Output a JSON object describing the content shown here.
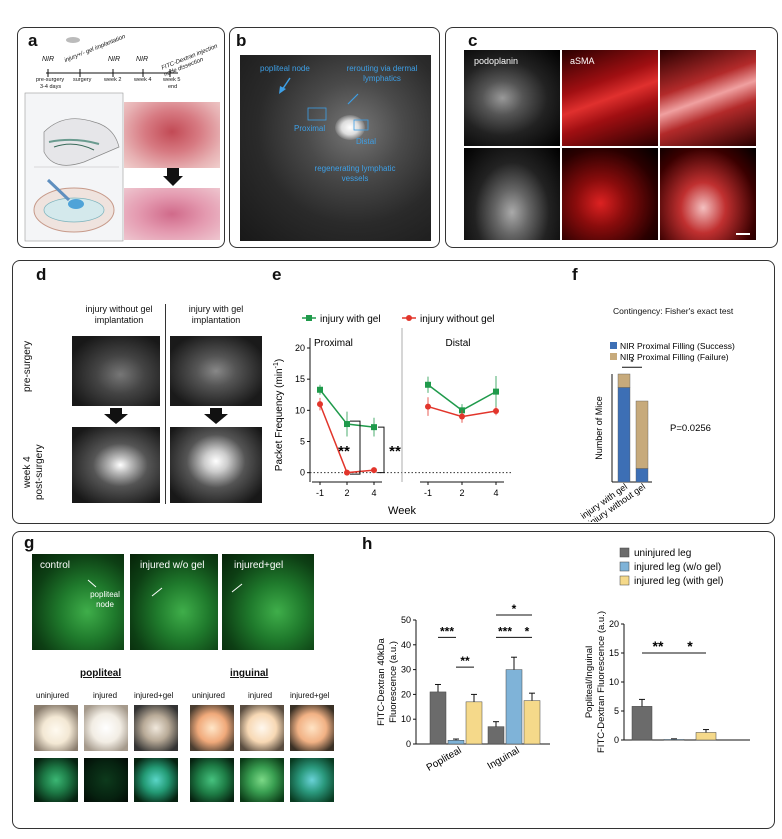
{
  "panel_a": {
    "label": "a",
    "timeline_top": [
      "NIR",
      "injury+/- gel implantation",
      "NIR",
      "NIR",
      "FITC-Dextran injection node dissection"
    ],
    "timeline_bottom": [
      "pre-surgery",
      "3-4 days",
      "surgery",
      "week 2",
      "week 4",
      "week 5",
      "end"
    ]
  },
  "panel_b": {
    "label": "b",
    "annotations": [
      "popliteal node",
      "rerouting via dermal lymphatics",
      "Proximal",
      "Distal",
      "regenerating lymphatic vessels"
    ]
  },
  "panel_c": {
    "label": "c",
    "channels": [
      "podoplanin",
      "aSMA"
    ]
  },
  "panel_d": {
    "label": "d",
    "col1": "injury without gel implantation",
    "col2": "injury with gel implantation",
    "row1": "pre-surgery",
    "row2a": "week 4",
    "row2b": "post-surgery"
  },
  "panel_e": {
    "label": "e",
    "legend": [
      "injury with gel",
      "injury without  gel"
    ],
    "subtitles": [
      "Proximal",
      "Distal"
    ],
    "ylabel": "Packet Frequency (min",
    "ylabel_sup": "-1",
    "xlabel": "Week",
    "sig": [
      "**",
      "**"
    ],
    "colors": {
      "with_gel": "#1f9a4b",
      "without_gel": "#e2352b"
    }
  },
  "panel_f": {
    "label": "f",
    "title": "Contingency: Fisher's exact test",
    "legend": [
      "NIR Proximal Filling (Success)",
      "NIR Proximal Filling (Failure)"
    ],
    "ylabel": "Number of Mice",
    "pvalue": "P=0.0256",
    "sig": "*",
    "colors": {
      "success": "#3d6fb5",
      "failure": "#c7aa7b"
    }
  },
  "panel_g": {
    "label": "g",
    "images": [
      "control",
      "injured w/o gel",
      "injured+gel"
    ],
    "node_label": "popliteal node",
    "groups": [
      "popliteal",
      "inguinal"
    ],
    "conditions": [
      "uninjured",
      "injured",
      "injured+gel",
      "uninjured",
      "injured",
      "injured+gel"
    ]
  },
  "panel_h": {
    "label": "h",
    "legend": [
      "uninjured leg",
      "injured leg (w/o gel)",
      "injured leg (with gel)"
    ],
    "left_ylabel_1": "FITC-Dextran 40kDa",
    "left_ylabel_2": "Fluorescence (a.u.)",
    "right_ylabel_1": "Popliteal/Inguinal",
    "right_ylabel_2": "FITC-Dextran Fluorescence (a.u.)",
    "left_categories": [
      "Popliteal",
      "Inguinal"
    ],
    "sig_left": [
      "***",
      "**",
      "***",
      "*",
      "*"
    ],
    "sig_right": [
      "**",
      "*"
    ],
    "colors": {
      "uninjured": "#6b6b6b",
      "without_gel": "#7fb3d8",
      "with_gel": "#f5d98a"
    }
  },
  "chart_data": [
    {
      "type": "line",
      "panel": "e-proximal",
      "subtitle": "Proximal",
      "x": [
        -1,
        2,
        4
      ],
      "series": [
        {
          "name": "injury with gel",
          "values": [
            13.3,
            7.8,
            7.3
          ],
          "errors": [
            0.8,
            2.0,
            1.5
          ]
        },
        {
          "name": "injury without  gel",
          "values": [
            11.0,
            0.0,
            0.4
          ],
          "errors": [
            1.0,
            0.1,
            0.2
          ]
        }
      ],
      "ylabel": "Packet Frequency (min-1)",
      "xlabel": "Week",
      "ylim": [
        -1.5,
        20
      ]
    },
    {
      "type": "line",
      "panel": "e-distal",
      "subtitle": "Distal",
      "x": [
        -1,
        2,
        4
      ],
      "series": [
        {
          "name": "injury with gel",
          "values": [
            14.1,
            10.0,
            13.0
          ],
          "errors": [
            1.3,
            1.0,
            2.5
          ]
        },
        {
          "name": "injury without  gel",
          "values": [
            10.6,
            9.0,
            9.9
          ],
          "errors": [
            1.5,
            1.0,
            0.7
          ]
        }
      ],
      "ylim": [
        -1.5,
        20
      ]
    },
    {
      "type": "bar",
      "panel": "f",
      "categories": [
        "injury with gel",
        "injury without gel"
      ],
      "series": [
        {
          "name": "NIR Proximal Filling (Success)",
          "values": [
            7,
            1
          ]
        },
        {
          "name": "NIR Proximal Filling (Failure)",
          "values": [
            1,
            5
          ]
        }
      ],
      "stacked": true,
      "ylabel": "Number of Mice"
    },
    {
      "type": "bar",
      "panel": "h-left",
      "categories": [
        "Popliteal",
        "Inguinal"
      ],
      "series": [
        {
          "name": "uninjured leg",
          "values": [
            21,
            7
          ],
          "errors": [
            3,
            2
          ]
        },
        {
          "name": "injured leg (w/o gel)",
          "values": [
            1.5,
            30
          ],
          "errors": [
            0.5,
            5
          ]
        },
        {
          "name": "injured leg (with gel)",
          "values": [
            17,
            17.5
          ],
          "errors": [
            3,
            3
          ]
        }
      ],
      "ylabel": "FITC-Dextran 40kDa Fluorescence (a.u.)",
      "ylim": [
        0,
        50
      ]
    },
    {
      "type": "bar",
      "panel": "h-right",
      "categories": [
        "uninjured leg",
        "injured leg (w/o gel)",
        "injured leg (with gel)"
      ],
      "values": [
        5.8,
        0.1,
        1.3
      ],
      "errors": [
        1.2,
        0.1,
        0.5
      ],
      "ylabel": "Popliteal/Inguinal FITC-Dextran Fluorescence (a.u.)",
      "ylim": [
        0,
        20
      ]
    }
  ]
}
